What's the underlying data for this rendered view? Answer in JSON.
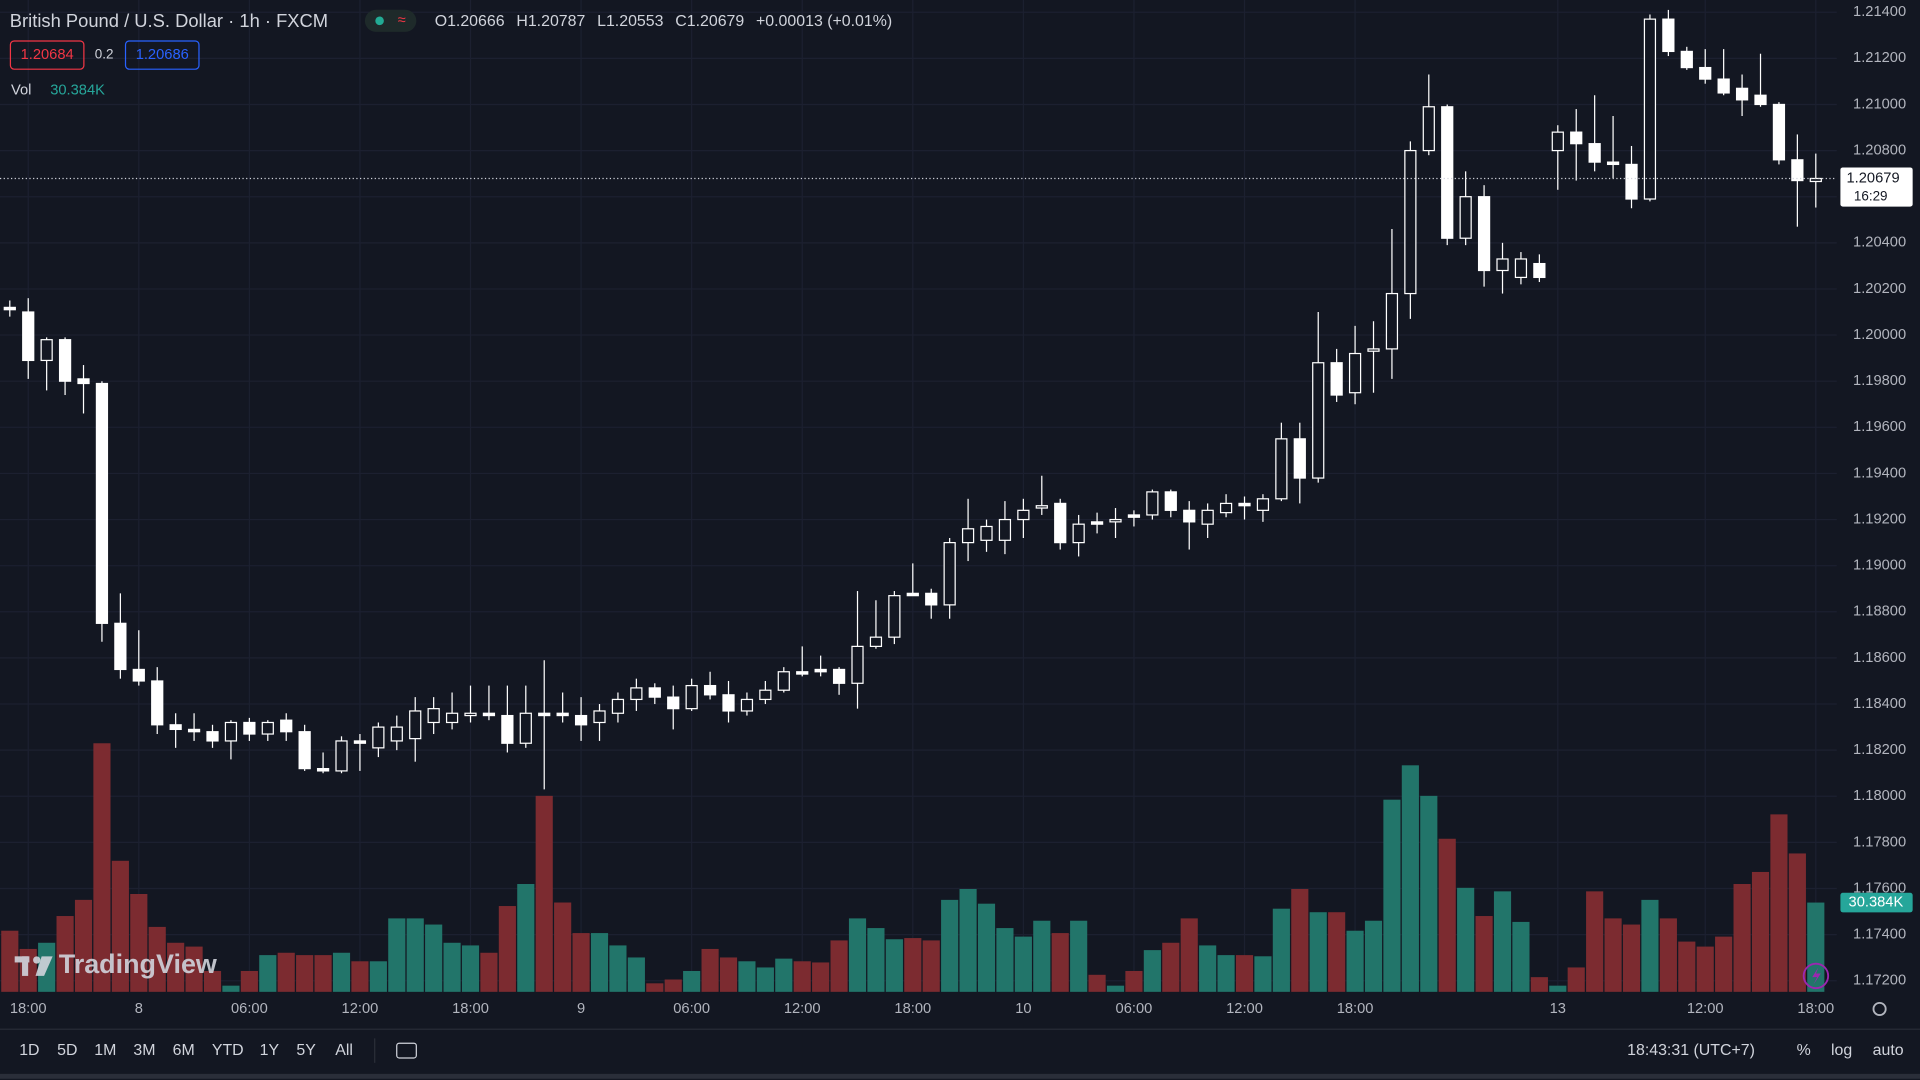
{
  "header": {
    "symbol": "British Pound / U.S. Dollar · 1h · FXCM",
    "ohlc_labels": [
      "O",
      "H",
      "L",
      "C"
    ],
    "change": "+0.00013 (+0.01%)",
    "sell": "1.20684",
    "spread": "0.2",
    "buy": "1.20686",
    "countdown": "16:29"
  },
  "chart_data": {
    "type": "candlestick",
    "categories": [
      null,
      "18:00",
      null,
      null,
      null,
      null,
      null,
      "8",
      null,
      null,
      null,
      null,
      null,
      "06:00",
      null,
      null,
      null,
      null,
      null,
      "12:00",
      null,
      null,
      null,
      null,
      null,
      "18:00",
      null,
      null,
      null,
      null,
      null,
      "9",
      null,
      null,
      null,
      null,
      null,
      "06:00",
      null,
      null,
      null,
      null,
      null,
      "12:00",
      null,
      null,
      null,
      null,
      null,
      "18:00",
      null,
      null,
      null,
      null,
      null,
      "10",
      null,
      null,
      null,
      null,
      null,
      "06:00",
      null,
      null,
      null,
      null,
      null,
      "12:00",
      null,
      null,
      null,
      null,
      null,
      "18:00",
      null,
      null,
      null,
      null,
      null,
      null,
      null,
      null,
      null,
      null,
      "13",
      null,
      null,
      null,
      null,
      null,
      null,
      null,
      "12:00",
      null,
      null,
      null,
      null,
      null,
      "18:00"
    ],
    "open": [
      1.2012,
      1.201,
      1.1989,
      1.1998,
      1.1981,
      1.1979,
      1.1875,
      1.1855,
      1.185,
      1.1831,
      1.1829,
      1.1828,
      1.1824,
      1.1832,
      1.1827,
      1.1833,
      1.1828,
      1.1812,
      1.1811,
      1.1824,
      1.1821,
      1.1824,
      1.1825,
      1.1832,
      1.1832,
      1.1835,
      1.1836,
      1.1835,
      1.1823,
      1.1836,
      1.1836,
      1.1835,
      1.1832,
      1.1836,
      1.1842,
      1.1847,
      1.1843,
      1.1838,
      1.1848,
      1.1844,
      1.1837,
      1.1842,
      1.1846,
      1.1854,
      1.1855,
      1.1855,
      1.1849,
      1.1865,
      1.1869,
      1.1888,
      1.1888,
      1.1883,
      1.191,
      1.1911,
      1.1911,
      1.192,
      1.1925,
      1.1927,
      1.191,
      1.1919,
      1.1919,
      1.1922,
      1.1922,
      1.1932,
      1.1924,
      1.1918,
      1.1923,
      1.1927,
      1.1924,
      1.1929,
      1.1955,
      1.1938,
      1.1988,
      1.1975,
      1.1993,
      1.1994,
      1.2018,
      1.208,
      1.2099,
      1.2042,
      1.206,
      1.2028,
      1.2025,
      1.2031,
      1.208,
      1.2088,
      1.2083,
      1.2075,
      1.2074,
      1.2059,
      1.2137,
      1.2123,
      1.2116,
      1.2111,
      1.2107,
      1.2104,
      1.21,
      1.2076,
      1.20666
    ],
    "high": [
      1.2015,
      1.2016,
      1.1999,
      1.1999,
      1.1987,
      1.198,
      1.1888,
      1.1872,
      1.1856,
      1.1836,
      1.1836,
      1.1831,
      1.1833,
      1.1834,
      1.1833,
      1.1836,
      1.1831,
      1.1819,
      1.1826,
      1.1827,
      1.1832,
      1.1835,
      1.1843,
      1.1843,
      1.1845,
      1.1848,
      1.1848,
      1.1848,
      1.1848,
      1.1859,
      1.1845,
      1.1843,
      1.184,
      1.1845,
      1.1851,
      1.1849,
      1.1848,
      1.1851,
      1.1854,
      1.185,
      1.1845,
      1.185,
      1.1856,
      1.1865,
      1.1861,
      1.1856,
      1.1889,
      1.1885,
      1.1889,
      1.1901,
      1.189,
      1.1912,
      1.1929,
      1.192,
      1.1928,
      1.1929,
      1.1939,
      1.1929,
      1.1922,
      1.1923,
      1.1925,
      1.1924,
      1.1933,
      1.1933,
      1.1928,
      1.1927,
      1.1931,
      1.193,
      1.1931,
      1.1962,
      1.1962,
      1.201,
      1.1994,
      1.2004,
      1.2006,
      1.2046,
      1.2084,
      1.2113,
      1.21,
      1.2071,
      1.2065,
      1.204,
      1.2036,
      1.2035,
      1.2091,
      1.2098,
      1.2104,
      1.2095,
      1.2082,
      1.2139,
      1.2141,
      1.2125,
      1.2124,
      1.2124,
      1.2113,
      1.2122,
      1.2101,
      1.2087,
      1.20787
    ],
    "low": [
      1.2008,
      1.1981,
      1.1976,
      1.1974,
      1.1966,
      1.1867,
      1.1851,
      1.1848,
      1.1827,
      1.1821,
      1.1824,
      1.1821,
      1.1816,
      1.1824,
      1.1824,
      1.1824,
      1.1811,
      1.181,
      1.181,
      1.1811,
      1.1817,
      1.182,
      1.1815,
      1.1827,
      1.1829,
      1.1832,
      1.1833,
      1.1819,
      1.1821,
      1.1803,
      1.1832,
      1.1824,
      1.1824,
      1.1832,
      1.1837,
      1.184,
      1.1829,
      1.1837,
      1.1842,
      1.1832,
      1.1835,
      1.184,
      1.1845,
      1.1852,
      1.1852,
      1.1844,
      1.1838,
      1.1864,
      1.1866,
      1.1887,
      1.1877,
      1.1877,
      1.1902,
      1.1906,
      1.1905,
      1.1912,
      1.1922,
      1.1907,
      1.1904,
      1.1914,
      1.1912,
      1.1917,
      1.192,
      1.1921,
      1.1907,
      1.1912,
      1.1921,
      1.192,
      1.1919,
      1.1928,
      1.1927,
      1.1936,
      1.1971,
      1.197,
      1.1975,
      1.1981,
      1.2007,
      1.2078,
      1.2039,
      1.2039,
      1.2021,
      1.2018,
      1.2022,
      1.2023,
      1.2063,
      1.2067,
      1.2071,
      1.2068,
      1.2055,
      1.2058,
      1.2121,
      1.2115,
      1.2109,
      1.2104,
      1.2095,
      1.2099,
      1.2074,
      1.2047,
      1.20553
    ],
    "close": [
      1.2011,
      1.1989,
      1.1998,
      1.198,
      1.1979,
      1.1875,
      1.1855,
      1.185,
      1.1831,
      1.1829,
      1.1828,
      1.1824,
      1.1832,
      1.1827,
      1.1832,
      1.1828,
      1.1812,
      1.1811,
      1.1824,
      1.1823,
      1.183,
      1.183,
      1.1837,
      1.1838,
      1.1836,
      1.1836,
      1.1835,
      1.1823,
      1.1836,
      1.1835,
      1.1835,
      1.1831,
      1.1837,
      1.1842,
      1.1847,
      1.1843,
      1.1838,
      1.1848,
      1.1844,
      1.1837,
      1.1842,
      1.1846,
      1.1854,
      1.1853,
      1.1854,
      1.1849,
      1.1865,
      1.1869,
      1.1887,
      1.1887,
      1.1883,
      1.191,
      1.1916,
      1.1917,
      1.192,
      1.1924,
      1.1926,
      1.191,
      1.1918,
      1.1918,
      1.192,
      1.1921,
      1.1932,
      1.1924,
      1.1919,
      1.1924,
      1.1927,
      1.1926,
      1.1929,
      1.1955,
      1.1938,
      1.1988,
      1.1974,
      1.1992,
      1.1994,
      1.2018,
      1.208,
      1.2099,
      1.2042,
      1.206,
      1.2028,
      1.2033,
      1.2033,
      1.2025,
      1.2088,
      1.2083,
      1.2075,
      1.2074,
      1.2059,
      1.2137,
      1.2123,
      1.2116,
      1.2111,
      1.2105,
      1.2102,
      1.21,
      1.2076,
      1.2067,
      1.20679
    ],
    "volume": {
      "name": "Vol",
      "last_label": "30.384K",
      "values": [
        20.8,
        14.6,
        16.7,
        25.8,
        31.3,
        84.6,
        44.6,
        33.3,
        22.1,
        16.7,
        15.4,
        7.1,
        2.1,
        7.1,
        12.5,
        13.3,
        12.5,
        12.5,
        13.3,
        10.4,
        10.4,
        25,
        25,
        22.9,
        16.7,
        15.8,
        13.3,
        29.2,
        36.7,
        66.7,
        30.4,
        20,
        20,
        15.8,
        11.7,
        2.9,
        4.2,
        7.1,
        14.6,
        11.7,
        10.4,
        8.3,
        11.3,
        10.4,
        10,
        17.5,
        25,
        21.7,
        17.9,
        18.3,
        17.5,
        31.3,
        35,
        30,
        21.7,
        18.8,
        24.2,
        20,
        24.2,
        5.8,
        2.1,
        7.1,
        14.2,
        16.7,
        25,
        15.8,
        12.5,
        12.5,
        12.1,
        28.3,
        35,
        27.1,
        27.1,
        20.8,
        24.2,
        65.4,
        77.1,
        66.7,
        52.1,
        35.4,
        25.8,
        34.2,
        23.8,
        5,
        2.1,
        8.3,
        34.2,
        25,
        22.9,
        31.3,
        25,
        17.1,
        15.4,
        18.8,
        36.7,
        40.8,
        60.4,
        47.1,
        30.384
      ]
    },
    "candle_color": "#ffffff",
    "volume_up_color": "#22756a",
    "volume_down_color": "#7c2b30",
    "volume_label_color": "#26a69a",
    "ylim": [
      1.17152,
      1.21453
    ],
    "yticks": [
      {
        "value": 1.214,
        "label": "1.21400"
      },
      {
        "value": 1.212,
        "label": "1.21200"
      },
      {
        "value": 1.21,
        "label": "1.21000"
      },
      {
        "value": 1.208,
        "label": "1.20800"
      },
      {
        "value": 1.206,
        "label": "1.20600"
      },
      {
        "value": 1.204,
        "label": "1.20400"
      },
      {
        "value": 1.202,
        "label": "1.20200"
      },
      {
        "value": 1.2,
        "label": "1.20000"
      },
      {
        "value": 1.198,
        "label": "1.19800"
      },
      {
        "value": 1.196,
        "label": "1.19600"
      },
      {
        "value": 1.194,
        "label": "1.19400"
      },
      {
        "value": 1.192,
        "label": "1.19200"
      },
      {
        "value": 1.19,
        "label": "1.19000"
      },
      {
        "value": 1.188,
        "label": "1.18800"
      },
      {
        "value": 1.186,
        "label": "1.18600"
      },
      {
        "value": 1.184,
        "label": "1.18400"
      },
      {
        "value": 1.182,
        "label": "1.18200"
      },
      {
        "value": 1.18,
        "label": "1.18000"
      },
      {
        "value": 1.178,
        "label": "1.17800"
      },
      {
        "value": 1.176,
        "label": "1.17600"
      },
      {
        "value": 1.174,
        "label": "1.17400"
      },
      {
        "value": 1.172,
        "label": "1.17200"
      }
    ],
    "grid": true
  },
  "watermark": {
    "brand": "TradingView"
  },
  "toolbar": {
    "ranges": [
      "1D",
      "5D",
      "1M",
      "3M",
      "6M",
      "YTD",
      "1Y",
      "5Y",
      "All"
    ],
    "clock": "18:43:31 (UTC+7)",
    "scale_options": [
      "%",
      "log",
      "auto"
    ]
  }
}
